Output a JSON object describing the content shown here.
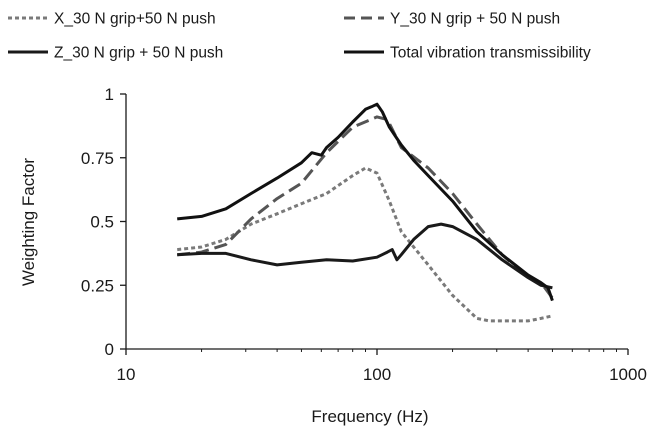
{
  "chart_data": {
    "type": "line",
    "x_scale": "log",
    "xlabel": "Frequency (Hz)",
    "ylabel": "Weighting Factor",
    "xlim": [
      10,
      1000
    ],
    "ylim": [
      0,
      1
    ],
    "x_ticks": [
      10,
      100,
      1000
    ],
    "x_tick_labels": [
      "10",
      "100",
      "1000"
    ],
    "y_ticks": [
      0,
      0.25,
      0.5,
      0.75,
      1
    ],
    "y_tick_labels": [
      "0",
      "0.25",
      "0.5",
      "0.75",
      "1"
    ],
    "grid": false,
    "legend_position": "top",
    "series": [
      {
        "name": "X_30 N grip+50 N push",
        "color": "#7a7a7a",
        "dash": "dotted",
        "x": [
          16,
          20,
          25,
          31.5,
          40,
          50,
          63,
          80,
          90,
          100,
          112,
          125,
          160,
          200,
          250,
          280,
          315,
          400,
          450,
          500
        ],
        "y": [
          0.39,
          0.4,
          0.43,
          0.49,
          0.53,
          0.57,
          0.61,
          0.68,
          0.71,
          0.69,
          0.58,
          0.46,
          0.33,
          0.21,
          0.12,
          0.11,
          0.11,
          0.11,
          0.12,
          0.13
        ]
      },
      {
        "name": "Y_30 N grip + 50 N push",
        "color": "#555555",
        "dash": "dashed",
        "x": [
          16,
          20,
          25,
          31.5,
          40,
          50,
          63,
          80,
          100,
          110,
          125,
          160,
          200,
          250,
          315,
          400,
          450,
          500
        ],
        "y": [
          0.37,
          0.38,
          0.41,
          0.51,
          0.59,
          0.65,
          0.77,
          0.87,
          0.91,
          0.9,
          0.79,
          0.71,
          0.61,
          0.49,
          0.37,
          0.28,
          0.26,
          0.2
        ]
      },
      {
        "name": "Z_30 N grip + 50 N push",
        "color": "#1a1a1a",
        "dash": "solid",
        "x": [
          16,
          20,
          25,
          31.5,
          40,
          50,
          63,
          80,
          100,
          110,
          115,
          120,
          125,
          140,
          160,
          180,
          200,
          250,
          315,
          400,
          450,
          500
        ],
        "y": [
          0.37,
          0.375,
          0.375,
          0.35,
          0.33,
          0.34,
          0.35,
          0.345,
          0.36,
          0.38,
          0.39,
          0.35,
          0.37,
          0.43,
          0.48,
          0.49,
          0.48,
          0.43,
          0.35,
          0.28,
          0.25,
          0.24
        ]
      },
      {
        "name": "Total vibration transmissibility",
        "color": "#111111",
        "dash": "solid",
        "x": [
          16,
          20,
          25,
          31.5,
          40,
          50,
          55,
          60,
          63,
          70,
          80,
          90,
          95,
          100,
          105,
          112,
          125,
          140,
          160,
          200,
          250,
          315,
          400,
          450,
          480,
          500
        ],
        "y": [
          0.51,
          0.52,
          0.55,
          0.61,
          0.67,
          0.73,
          0.77,
          0.76,
          0.79,
          0.83,
          0.89,
          0.94,
          0.95,
          0.96,
          0.93,
          0.87,
          0.8,
          0.74,
          0.68,
          0.58,
          0.46,
          0.37,
          0.29,
          0.26,
          0.24,
          0.19
        ]
      }
    ]
  }
}
